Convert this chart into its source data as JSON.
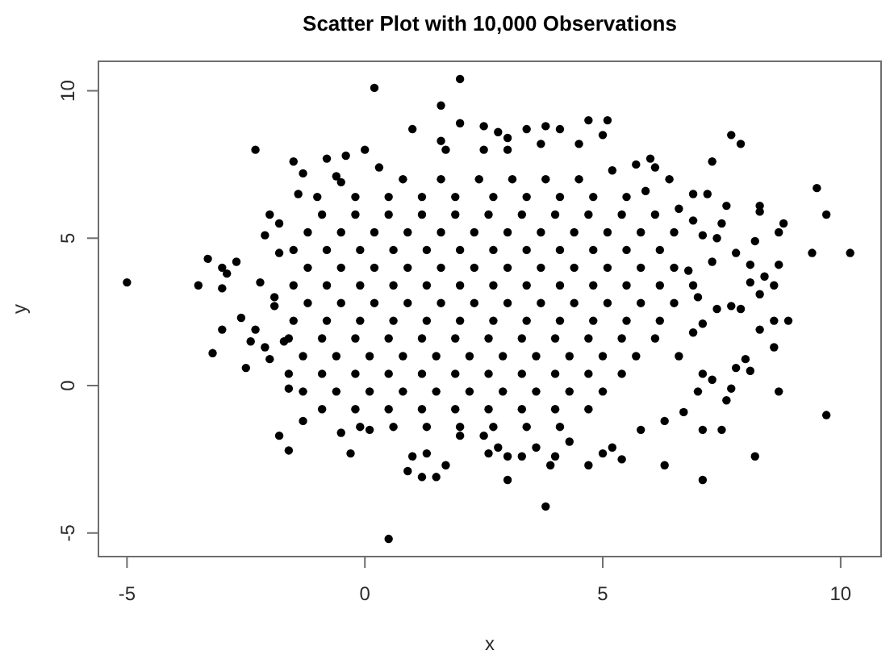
{
  "chart_data": {
    "type": "scatter",
    "title": "Scatter Plot with 10,000 Observations",
    "xlabel": "x",
    "ylabel": "y",
    "color": "#000000",
    "marker": "circle",
    "xlim": [
      -5.6,
      10.85
    ],
    "ylim": [
      -5.8,
      11.0
    ],
    "xticks": [
      -5,
      0,
      5,
      10
    ],
    "yticks": [
      -5,
      0,
      5,
      10
    ],
    "x": [
      0.8,
      1.6,
      2.4,
      3.1,
      3.8,
      4.5,
      -0.2,
      0.5,
      1.2,
      1.9,
      2.7,
      3.4,
      4.1,
      4.8,
      5.5,
      -0.9,
      -0.2,
      0.5,
      1.2,
      1.9,
      2.6,
      3.3,
      4.0,
      4.7,
      5.4,
      6.1,
      -1.2,
      -0.5,
      0.2,
      0.9,
      1.6,
      2.3,
      3.0,
      3.7,
      4.4,
      5.1,
      5.8,
      6.5,
      -1.5,
      -0.8,
      -0.1,
      0.6,
      1.3,
      2.0,
      2.7,
      3.4,
      4.1,
      4.8,
      5.5,
      6.2,
      -1.2,
      -0.5,
      0.2,
      0.9,
      1.6,
      2.3,
      3.0,
      3.7,
      4.4,
      5.1,
      5.8,
      6.5,
      -1.5,
      -0.8,
      -0.1,
      0.6,
      1.3,
      2.0,
      2.7,
      3.4,
      4.1,
      4.8,
      5.5,
      6.2,
      6.9,
      -1.2,
      -0.5,
      0.2,
      0.9,
      1.6,
      2.3,
      3.0,
      3.7,
      4.4,
      5.1,
      5.8,
      6.5,
      -1.5,
      -0.8,
      -0.1,
      0.6,
      1.3,
      2.0,
      2.7,
      3.4,
      4.1,
      4.8,
      5.5,
      6.2,
      -1.6,
      -0.9,
      -0.2,
      0.5,
      1.2,
      1.9,
      2.6,
      3.3,
      4.0,
      4.7,
      5.4,
      6.1,
      -1.3,
      -0.6,
      0.1,
      0.8,
      1.5,
      2.2,
      2.9,
      3.6,
      4.3,
      5.0,
      5.7,
      -1.6,
      -0.9,
      -0.2,
      0.5,
      1.2,
      1.9,
      2.6,
      3.3,
      4.0,
      4.7,
      5.4,
      -1.3,
      -0.6,
      0.1,
      0.8,
      1.5,
      2.2,
      2.9,
      3.6,
      4.3,
      5.0,
      -0.9,
      -0.2,
      0.5,
      1.2,
      1.9,
      2.6,
      3.3,
      4.0,
      4.7,
      -0.1,
      0.6,
      1.3,
      2.0,
      2.7,
      3.4,
      4.1,
      0.2,
      -2.3,
      -5.0,
      -3.5,
      -3.3,
      -3.0,
      -2.9,
      -2.7,
      -3.0,
      -2.6,
      -2.0,
      -2.1,
      -1.5,
      -1.3,
      -0.8,
      -0.4,
      0.0,
      -0.6,
      -1.4,
      -2.2,
      -1.9,
      -1.8,
      -3.0,
      -3.2,
      -2.5,
      -2.4,
      -2.3,
      -1.7,
      -2.0,
      -1.8,
      -1.6,
      -0.3,
      -1.6,
      -1.3,
      -0.5,
      0.1,
      2.0,
      1.6,
      1.0,
      2.0,
      2.5,
      2.8,
      3.0,
      3.4,
      3.8,
      4.1,
      4.7,
      5.1,
      5.0,
      5.7,
      4.5,
      1.6,
      1.7,
      2.5,
      3.0,
      3.7,
      0.5,
      3.8,
      3.0,
      0.9,
      1.2,
      1.5,
      1.7,
      1.0,
      1.3,
      2.6,
      3.0,
      3.3,
      3.9,
      4.0,
      4.7,
      5.0,
      5.2,
      5.4,
      2.8,
      3.6,
      4.3,
      2.5,
      2.0,
      7.7,
      7.9,
      7.3,
      9.5,
      9.7,
      9.4,
      10.2,
      8.8,
      8.7,
      8.7,
      8.2,
      8.3,
      8.3,
      7.6,
      7.5,
      7.2,
      6.0,
      6.1,
      6.4,
      6.9,
      8.1,
      8.4,
      8.6,
      8.3,
      8.1,
      7.8,
      7.1,
      7.4,
      7.7,
      7.4,
      7.9,
      8.9,
      9.7,
      8.2,
      7.1,
      6.3,
      7.1,
      7.5,
      5.8,
      6.3,
      8.7,
      7.6,
      6.7,
      7.7,
      8.1,
      7.8,
      8.6,
      8.3,
      8.6,
      8.0,
      7.3,
      7.0,
      7.1,
      6.8,
      7.0,
      6.9,
      6.6,
      7.3,
      7.1,
      -1.0,
      -0.5,
      0.3,
      5.2,
      5.9,
      6.6,
      6.9,
      -1.8,
      -1.9,
      -2.1
    ],
    "values": [
      7.0,
      7.0,
      7.0,
      7.0,
      7.0,
      7.0,
      6.4,
      6.4,
      6.4,
      6.4,
      6.4,
      6.4,
      6.4,
      6.4,
      6.4,
      5.8,
      5.8,
      5.8,
      5.8,
      5.8,
      5.8,
      5.8,
      5.8,
      5.8,
      5.8,
      5.8,
      5.2,
      5.2,
      5.2,
      5.2,
      5.2,
      5.2,
      5.2,
      5.2,
      5.2,
      5.2,
      5.2,
      5.2,
      4.6,
      4.6,
      4.6,
      4.6,
      4.6,
      4.6,
      4.6,
      4.6,
      4.6,
      4.6,
      4.6,
      4.6,
      4.0,
      4.0,
      4.0,
      4.0,
      4.0,
      4.0,
      4.0,
      4.0,
      4.0,
      4.0,
      4.0,
      4.0,
      3.4,
      3.4,
      3.4,
      3.4,
      3.4,
      3.4,
      3.4,
      3.4,
      3.4,
      3.4,
      3.4,
      3.4,
      3.4,
      2.8,
      2.8,
      2.8,
      2.8,
      2.8,
      2.8,
      2.8,
      2.8,
      2.8,
      2.8,
      2.8,
      2.8,
      2.2,
      2.2,
      2.2,
      2.2,
      2.2,
      2.2,
      2.2,
      2.2,
      2.2,
      2.2,
      2.2,
      2.2,
      1.6,
      1.6,
      1.6,
      1.6,
      1.6,
      1.6,
      1.6,
      1.6,
      1.6,
      1.6,
      1.6,
      1.6,
      1.0,
      1.0,
      1.0,
      1.0,
      1.0,
      1.0,
      1.0,
      1.0,
      1.0,
      1.0,
      1.0,
      0.4,
      0.4,
      0.4,
      0.4,
      0.4,
      0.4,
      0.4,
      0.4,
      0.4,
      0.4,
      0.4,
      -0.2,
      -0.2,
      -0.2,
      -0.2,
      -0.2,
      -0.2,
      -0.2,
      -0.2,
      -0.2,
      -0.2,
      -0.8,
      -0.8,
      -0.8,
      -0.8,
      -0.8,
      -0.8,
      -0.8,
      -0.8,
      -0.8,
      -1.4,
      -1.4,
      -1.4,
      -1.4,
      -1.4,
      -1.4,
      -1.4,
      10.1,
      8.0,
      3.5,
      3.4,
      4.3,
      4.0,
      3.8,
      4.2,
      3.3,
      2.3,
      5.8,
      5.1,
      7.6,
      7.2,
      7.7,
      7.8,
      8.0,
      7.1,
      6.5,
      3.5,
      3.0,
      5.5,
      1.9,
      1.1,
      0.6,
      1.5,
      1.9,
      1.5,
      0.9,
      -1.7,
      -2.2,
      -2.3,
      -0.1,
      -1.2,
      -1.6,
      -1.5,
      10.4,
      9.5,
      8.7,
      8.9,
      8.8,
      8.6,
      8.4,
      8.7,
      8.8,
      8.7,
      9.0,
      9.0,
      8.5,
      7.5,
      8.2,
      8.3,
      8.0,
      8.0,
      8.0,
      8.2,
      -5.2,
      -4.1,
      -3.2,
      -2.9,
      -3.1,
      -3.1,
      -2.7,
      -2.4,
      -2.3,
      -2.3,
      -2.4,
      -2.4,
      -2.7,
      -2.4,
      -2.7,
      -2.3,
      -2.1,
      -2.5,
      -2.1,
      -2.1,
      -1.9,
      -1.7,
      -1.7,
      8.5,
      8.2,
      7.6,
      6.7,
      5.8,
      4.5,
      4.5,
      5.5,
      5.2,
      4.1,
      4.9,
      5.9,
      6.1,
      6.1,
      5.5,
      6.5,
      7.7,
      7.4,
      7.0,
      6.5,
      4.1,
      3.7,
      3.4,
      3.1,
      3.5,
      4.5,
      5.1,
      5.0,
      2.7,
      2.6,
      2.6,
      2.2,
      -1.0,
      -2.4,
      -3.2,
      -2.7,
      -1.5,
      -1.5,
      -1.5,
      -1.2,
      -0.2,
      -0.5,
      -0.9,
      -0.1,
      0.5,
      0.6,
      2.2,
      1.9,
      1.3,
      0.9,
      0.2,
      -0.2,
      0.4,
      3.9,
      3.0,
      1.8,
      1.0,
      4.2,
      2.1,
      6.4,
      6.9,
      7.4,
      7.3,
      6.6,
      6.0,
      5.6,
      4.5,
      2.7,
      1.3
    ]
  }
}
